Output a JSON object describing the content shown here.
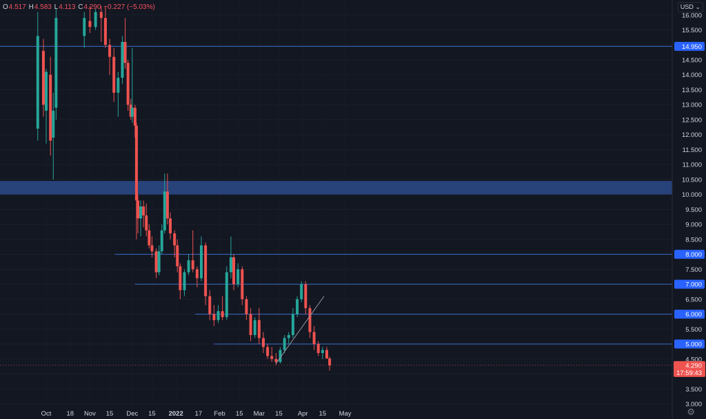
{
  "legend": {
    "open_label": "O",
    "open": "4.517",
    "high_label": "H",
    "high": "4.583",
    "low_label": "L",
    "low": "4.113",
    "close_label": "C",
    "close": "4.290",
    "change": "−0.227 (−5.03%)"
  },
  "currency": "USD",
  "price_tag": {
    "value": "4.290",
    "countdown": "17:59:43"
  },
  "icons": {
    "settings": "gear-icon",
    "dropdown": "chevron-down-icon"
  },
  "colors": {
    "up": "#26a69a",
    "down": "#ef5350",
    "background": "#131722",
    "level_line": "#2962ff",
    "zone": "#2d4a8a"
  },
  "chart_data": {
    "type": "candlestick",
    "ylim": [
      3.0,
      16.3
    ],
    "ytick_labels": [
      "3.000",
      "3.500",
      "4.000",
      "4.500",
      "5.000",
      "5.500",
      "6.000",
      "6.500",
      "7.000",
      "7.500",
      "8.000",
      "8.500",
      "9.000",
      "9.500",
      "10.000",
      "10.500",
      "11.000",
      "11.500",
      "12.000",
      "12.500",
      "13.000",
      "13.500",
      "14.000",
      "14.500",
      "15.000",
      "15.500",
      "16.000"
    ],
    "xtick_labels": [
      "Oct",
      "18",
      "Nov",
      "15",
      "Dec",
      "15",
      "2022",
      "17",
      "Feb",
      "15",
      "Mar",
      "15",
      "Apr",
      "15",
      "May"
    ],
    "highlighted_levels": [
      "14.950",
      "8.000",
      "7.000",
      "6.000",
      "5.000"
    ],
    "zone": [
      10.0,
      10.45
    ],
    "current_price": 4.29,
    "series": [
      {
        "date": "Sep 25",
        "values": [
          12.2,
          16.1,
          11.8,
          15.3
        ]
      },
      {
        "date": "Sep 29",
        "values": [
          14.8,
          15.2,
          12.6,
          13.0
        ]
      },
      {
        "date": "Oct 1",
        "values": [
          12.8,
          14.2,
          11.7,
          14.1
        ]
      },
      {
        "date": "Oct 4",
        "values": [
          14.0,
          14.6,
          11.3,
          11.8
        ]
      },
      {
        "date": "Oct 6",
        "values": [
          11.9,
          13.4,
          10.5,
          12.8
        ]
      },
      {
        "date": "Oct 8",
        "values": [
          12.9,
          16.2,
          12.5,
          15.9
        ]
      },
      {
        "date": "Oct 28",
        "values": [
          15.3,
          16.1,
          14.9,
          15.9
        ]
      },
      {
        "date": "Nov 1",
        "values": [
          15.8,
          16.3,
          15.4,
          15.6
        ]
      },
      {
        "date": "Nov 5",
        "values": [
          15.6,
          16.2,
          15.5,
          16.1
        ]
      },
      {
        "date": "Nov 9",
        "values": [
          16.1,
          16.3,
          15.1,
          15.9
        ]
      },
      {
        "date": "Nov 12",
        "values": [
          15.9,
          16.3,
          14.9,
          15.0
        ]
      },
      {
        "date": "Nov 15",
        "values": [
          15.0,
          15.2,
          14.0,
          14.6
        ]
      },
      {
        "date": "Nov 18",
        "values": [
          14.6,
          14.9,
          13.1,
          13.4
        ]
      },
      {
        "date": "Nov 21",
        "values": [
          13.4,
          14.1,
          12.6,
          13.9
        ]
      },
      {
        "date": "Nov 24",
        "values": [
          13.9,
          15.3,
          13.7,
          15.1
        ]
      },
      {
        "date": "Nov 26",
        "values": [
          15.1,
          15.9,
          14.2,
          14.4
        ]
      },
      {
        "date": "Nov 28",
        "values": [
          14.4,
          14.5,
          12.8,
          13.0
        ]
      },
      {
        "date": "Nov 30",
        "values": [
          13.0,
          13.2,
          12.5,
          12.6
        ]
      },
      {
        "date": "Dec 1",
        "values": [
          12.6,
          14.9,
          12.4,
          12.9
        ]
      },
      {
        "date": "Dec 3",
        "values": [
          12.9,
          13.0,
          11.9,
          12.3
        ]
      },
      {
        "date": "Dec 4",
        "values": [
          12.3,
          12.4,
          8.5,
          9.8
        ]
      },
      {
        "date": "Dec 5",
        "values": [
          9.8,
          10.0,
          8.7,
          9.2
        ]
      },
      {
        "date": "Dec 7",
        "values": [
          9.2,
          9.8,
          8.6,
          9.6
        ]
      },
      {
        "date": "Dec 9",
        "values": [
          9.6,
          9.8,
          8.9,
          9.3
        ]
      },
      {
        "date": "Dec 11",
        "values": [
          9.3,
          9.7,
          8.6,
          8.8
        ]
      },
      {
        "date": "Dec 13",
        "values": [
          8.8,
          9.0,
          8.2,
          8.3
        ]
      },
      {
        "date": "Dec 15",
        "values": [
          8.3,
          8.6,
          7.9,
          8.1
        ]
      },
      {
        "date": "Dec 18",
        "values": [
          8.1,
          8.2,
          7.2,
          7.4
        ]
      },
      {
        "date": "Dec 20",
        "values": [
          7.4,
          8.3,
          7.3,
          8.1
        ]
      },
      {
        "date": "Dec 22",
        "values": [
          8.1,
          9.0,
          8.0,
          8.8
        ]
      },
      {
        "date": "Dec 24",
        "values": [
          8.8,
          10.7,
          8.7,
          10.1
        ]
      },
      {
        "date": "Dec 26",
        "values": [
          10.1,
          10.7,
          9.0,
          9.2
        ]
      },
      {
        "date": "Dec 28",
        "values": [
          9.2,
          9.4,
          8.5,
          8.7
        ]
      },
      {
        "date": "Dec 31",
        "values": [
          8.7,
          8.8,
          7.9,
          8.3
        ]
      },
      {
        "date": "Jan 2",
        "values": [
          8.3,
          8.5,
          7.4,
          7.6
        ]
      },
      {
        "date": "Jan 4",
        "values": [
          7.6,
          7.7,
          6.5,
          6.8
        ]
      },
      {
        "date": "Jan 7",
        "values": [
          6.8,
          7.5,
          6.6,
          7.4
        ]
      },
      {
        "date": "Jan 10",
        "values": [
          7.4,
          8.0,
          7.3,
          7.8
        ]
      },
      {
        "date": "Jan 13",
        "values": [
          7.8,
          8.8,
          7.4,
          7.5
        ]
      },
      {
        "date": "Jan 16",
        "values": [
          7.5,
          7.6,
          6.9,
          7.2
        ]
      },
      {
        "date": "Jan 19",
        "values": [
          7.2,
          8.6,
          7.1,
          8.3
        ]
      },
      {
        "date": "Jan 22",
        "values": [
          8.3,
          8.4,
          6.3,
          6.6
        ]
      },
      {
        "date": "Jan 25",
        "values": [
          6.6,
          6.8,
          5.8,
          6.0
        ]
      },
      {
        "date": "Jan 28",
        "values": [
          6.0,
          6.3,
          5.6,
          5.8
        ]
      },
      {
        "date": "Jan 31",
        "values": [
          5.8,
          6.3,
          5.7,
          6.1
        ]
      },
      {
        "date": "Feb 3",
        "values": [
          6.1,
          6.6,
          5.8,
          5.9
        ]
      },
      {
        "date": "Feb 6",
        "values": [
          5.9,
          7.6,
          5.8,
          7.4
        ]
      },
      {
        "date": "Feb 9",
        "values": [
          7.4,
          8.6,
          7.2,
          7.9
        ]
      },
      {
        "date": "Feb 11",
        "values": [
          7.9,
          8.0,
          6.8,
          7.0
        ]
      },
      {
        "date": "Feb 14",
        "values": [
          7.0,
          7.7,
          6.9,
          7.5
        ]
      },
      {
        "date": "Feb 17",
        "values": [
          7.5,
          7.6,
          6.3,
          6.5
        ]
      },
      {
        "date": "Feb 20",
        "values": [
          6.5,
          6.6,
          5.8,
          6.0
        ]
      },
      {
        "date": "Feb 23",
        "values": [
          6.0,
          6.2,
          5.1,
          5.3
        ]
      },
      {
        "date": "Feb 26",
        "values": [
          5.3,
          5.9,
          5.2,
          5.8
        ]
      },
      {
        "date": "Mar 1",
        "values": [
          5.8,
          6.2,
          5.0,
          5.2
        ]
      },
      {
        "date": "Mar 4",
        "values": [
          5.2,
          5.4,
          4.7,
          4.9
        ]
      },
      {
        "date": "Mar 7",
        "values": [
          4.9,
          5.0,
          4.5,
          4.6
        ]
      },
      {
        "date": "Mar 10",
        "values": [
          4.6,
          4.9,
          4.4,
          4.5
        ]
      },
      {
        "date": "Mar 13",
        "values": [
          4.5,
          4.7,
          4.3,
          4.4
        ]
      },
      {
        "date": "Mar 16",
        "values": [
          4.4,
          4.9,
          4.35,
          4.8
        ]
      },
      {
        "date": "Mar 19",
        "values": [
          4.8,
          5.3,
          4.7,
          5.2
        ]
      },
      {
        "date": "Mar 22",
        "values": [
          5.2,
          5.4,
          5.0,
          5.3
        ]
      },
      {
        "date": "Mar 25",
        "values": [
          5.3,
          6.2,
          5.2,
          6.0
        ]
      },
      {
        "date": "Mar 28",
        "values": [
          6.0,
          6.6,
          5.9,
          6.5
        ]
      },
      {
        "date": "Mar 31",
        "values": [
          6.5,
          7.1,
          6.4,
          7.0
        ]
      },
      {
        "date": "Apr 3",
        "values": [
          7.0,
          7.1,
          6.0,
          6.2
        ]
      },
      {
        "date": "Apr 6",
        "values": [
          6.2,
          6.3,
          5.2,
          5.4
        ]
      },
      {
        "date": "Apr 9",
        "values": [
          5.4,
          5.6,
          4.8,
          5.0
        ]
      },
      {
        "date": "Apr 12",
        "values": [
          5.0,
          5.1,
          4.6,
          4.7
        ]
      },
      {
        "date": "Apr 15",
        "values": [
          4.7,
          4.9,
          4.5,
          4.8
        ]
      },
      {
        "date": "Apr 18",
        "values": [
          4.8,
          4.9,
          4.5,
          4.52
        ]
      },
      {
        "date": "Apr 20",
        "values": [
          4.517,
          4.583,
          4.113,
          4.29
        ]
      }
    ]
  }
}
